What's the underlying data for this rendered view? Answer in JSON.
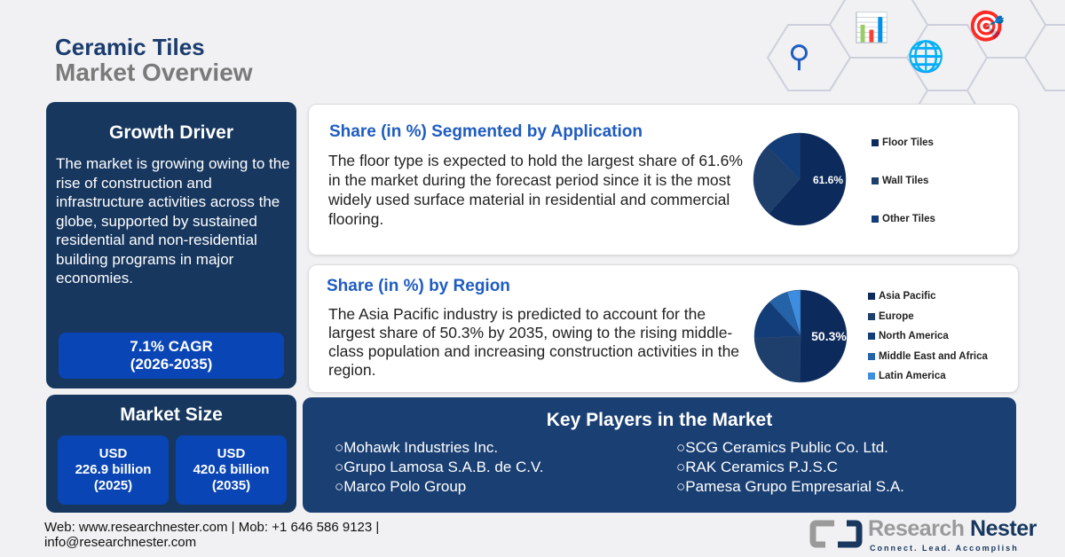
{
  "header": {
    "title_line1": "Ceramic Tiles",
    "title_line2": "Market Overview"
  },
  "growth": {
    "title": "Growth Driver",
    "text": "The market is growing owing to the rise of construction and infrastructure activities across the globe, supported by sustained residential and non-residential building programs in major economies.",
    "cagr": "7.1% CAGR",
    "period": "(2026-2035)"
  },
  "market_size": {
    "title": "Market Size",
    "items": [
      {
        "currency": "USD",
        "value": "226.9 billion",
        "year": "(2025)"
      },
      {
        "currency": "USD",
        "value": "420.6 billion",
        "year": "(2035)"
      }
    ]
  },
  "application": {
    "title": "Share (in %) Segmented by Application",
    "text": "The floor type is expected to hold the largest share of 61.6% in the market during the forecast period since it is the most widely used surface material in residential and commercial flooring."
  },
  "region": {
    "title": "Share (in %) by Region",
    "text": "The Asia Pacific industry is predicted to account for the largest share of 50.3% by 2035, owing to the rising middle-class population and increasing construction activities in the region."
  },
  "chart_data": [
    {
      "type": "pie",
      "categories": [
        "Floor Tiles",
        "Wall Tiles",
        "Other Tiles"
      ],
      "values": [
        61.6,
        26.0,
        12.4
      ],
      "colors": [
        "#0d2a5c",
        "#1e3f6b",
        "#123d78"
      ],
      "data_label": "61.6%",
      "legend": "right"
    },
    {
      "type": "pie",
      "categories": [
        "Asia Pacific",
        "Europe",
        "North America",
        "Middle East and Africa",
        "Latin America"
      ],
      "values": [
        50.3,
        24.0,
        14.0,
        7.0,
        4.7
      ],
      "colors": [
        "#0d2a5c",
        "#1e3f6b",
        "#123d78",
        "#2563a8",
        "#3d8ee0"
      ],
      "data_label": "50.3%",
      "legend": "right"
    }
  ],
  "key_players": {
    "title": "Key Players in the Market",
    "left": [
      "Mohawk Industries Inc.",
      "Grupo Lamosa S.A.B. de C.V.",
      "Marco Polo Group"
    ],
    "right": [
      "SCG Ceramics Public Co. Ltd.",
      "RAK Ceramics P.J.S.C",
      "Pamesa Grupo Empresarial S.A."
    ]
  },
  "footer": {
    "line1": "Web: www.researchnester.com | Mob: +1 646 586 9123 |",
    "line2": "info@researchnester.com"
  },
  "logo": {
    "name1": "Research",
    "name2": "Nester",
    "tagline": "Connect. Lead. Accomplish"
  },
  "icons": [
    "network-analysis-icon",
    "growth-chart-icon",
    "global-market-icon",
    "target-clipboard-icon"
  ]
}
